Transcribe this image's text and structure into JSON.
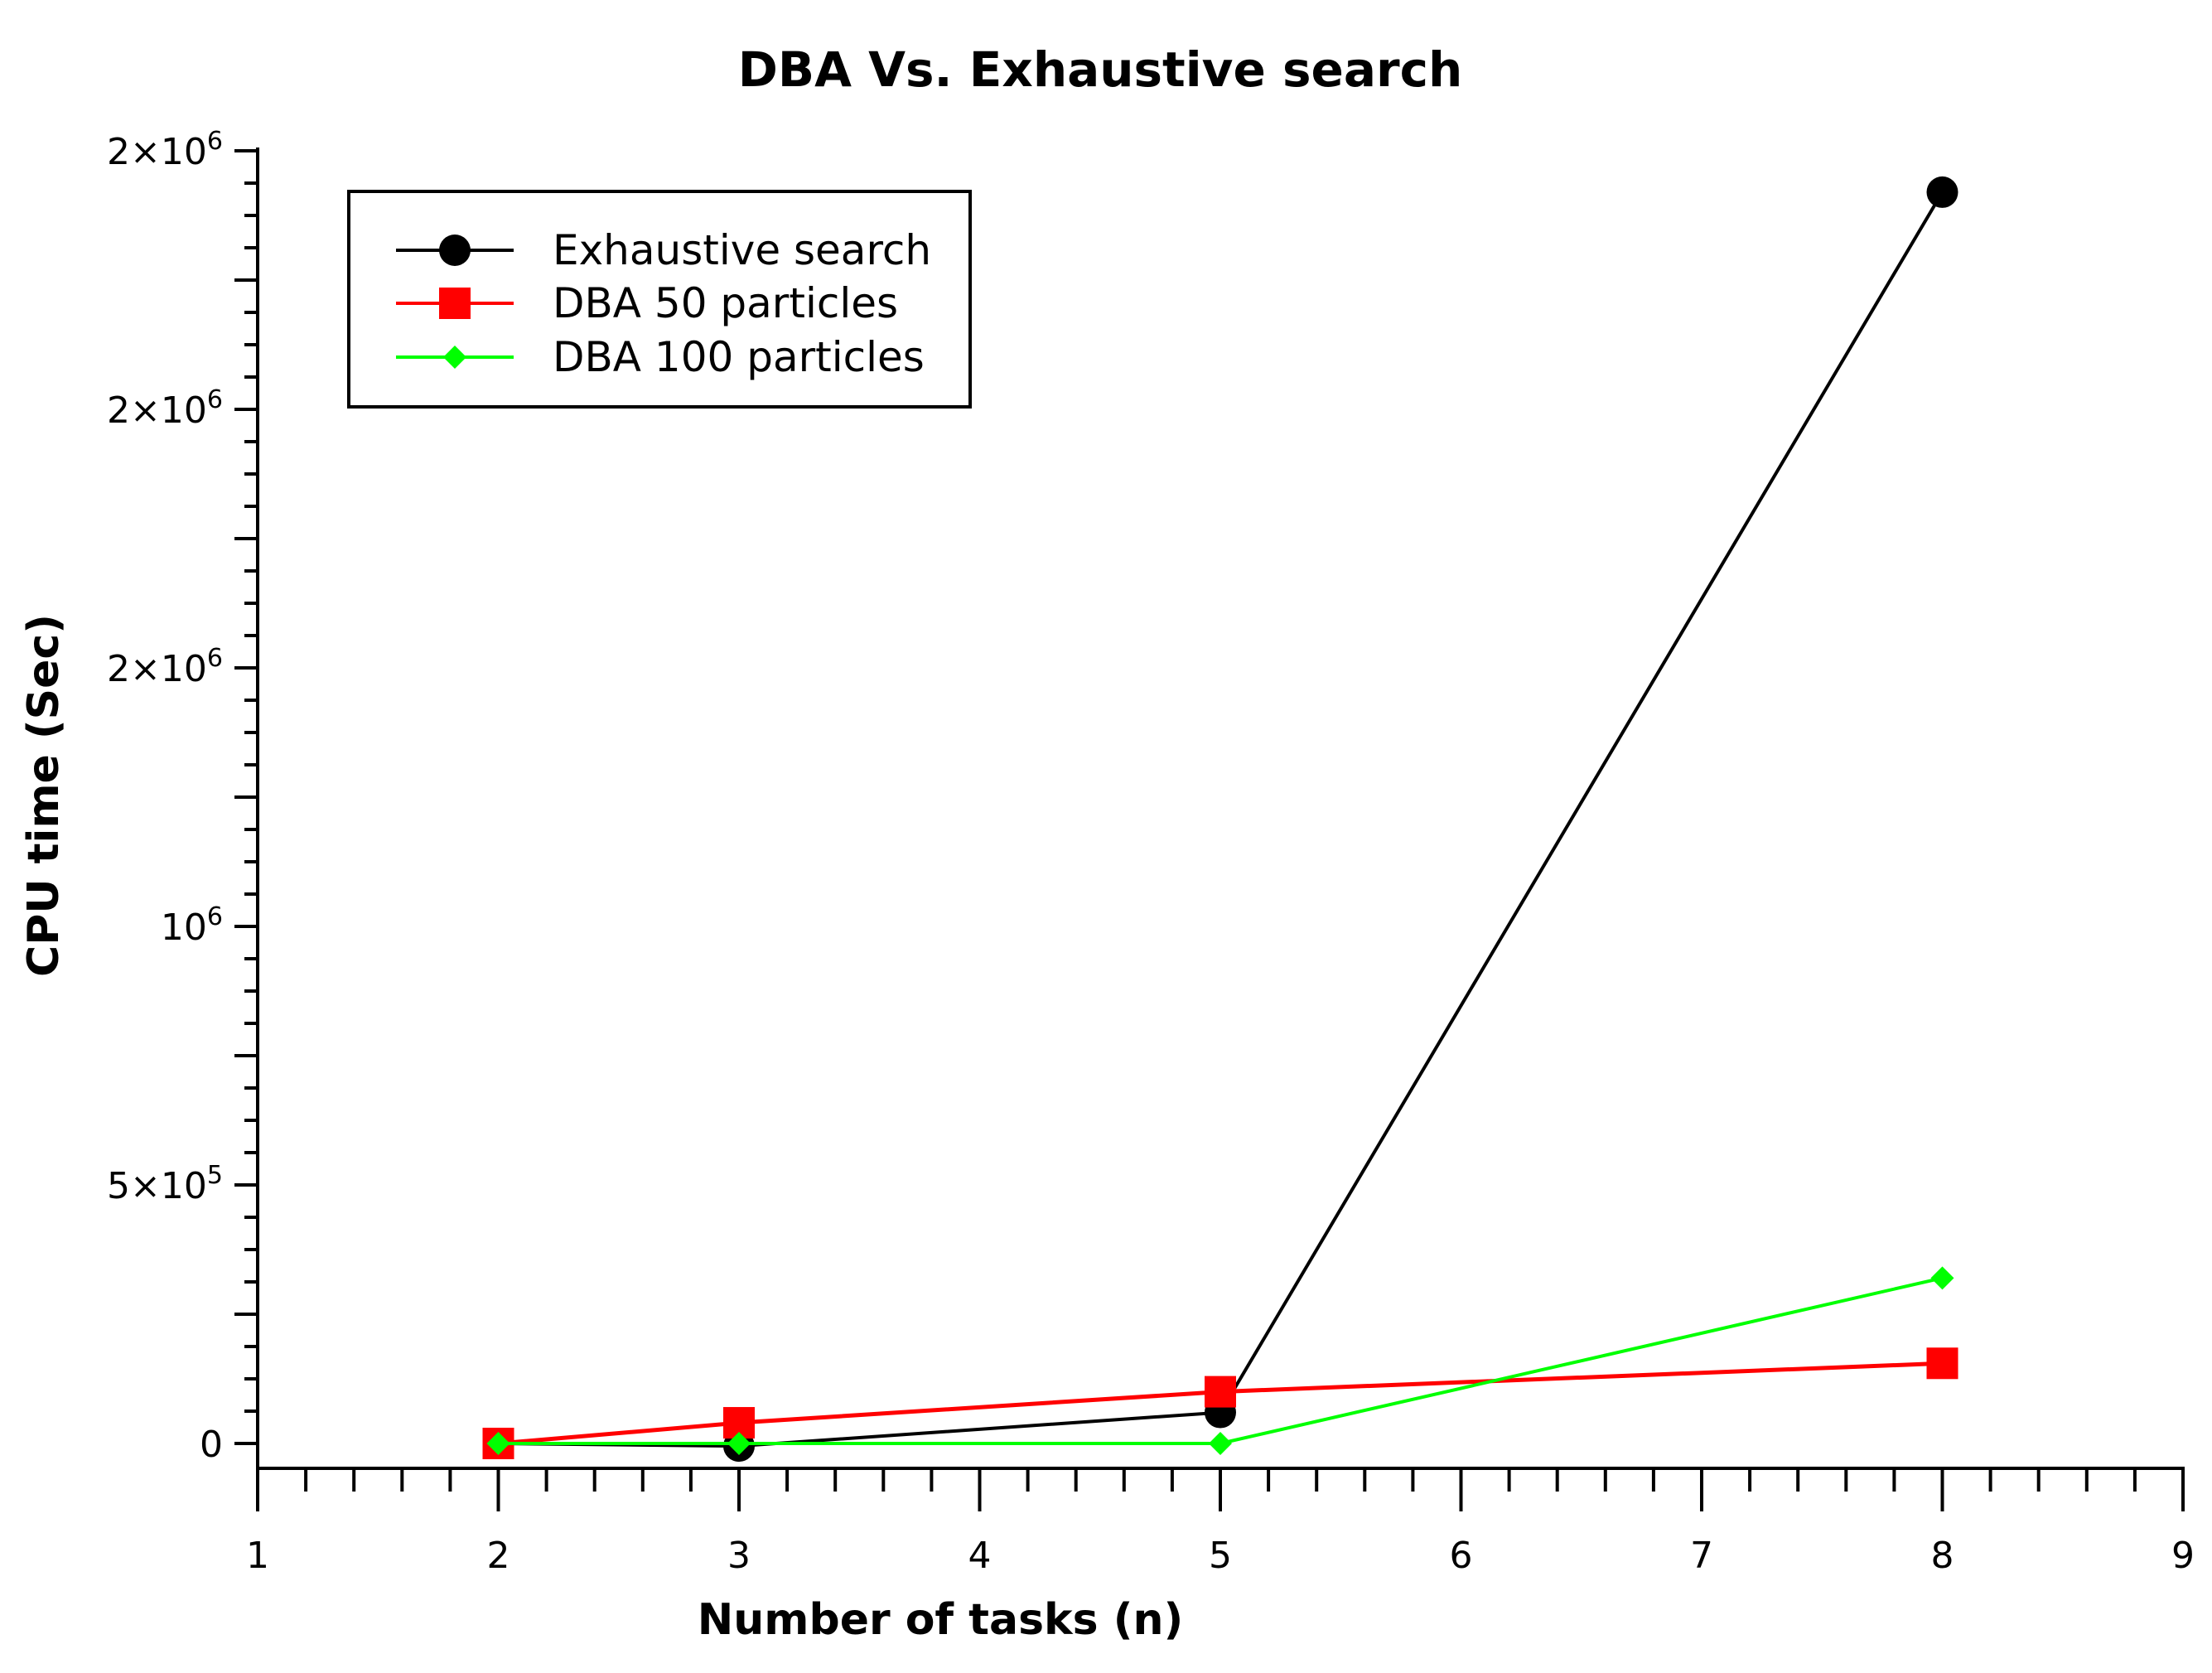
{
  "chart_data": {
    "type": "line",
    "title": "DBA Vs. Exhaustive search",
    "xlabel": "Number of tasks (n)",
    "ylabel": "CPU time (Sec)",
    "xlim": [
      1,
      9
    ],
    "ylim": [
      -50000,
      2500000
    ],
    "x_ticks": [
      "1",
      "2",
      "3",
      "4",
      "5",
      "6",
      "7",
      "8",
      "9"
    ],
    "y_ticks": [
      {
        "value": 0,
        "base": "0",
        "exp": ""
      },
      {
        "value": 500000,
        "base": "5×10",
        "exp": "5"
      },
      {
        "value": 1000000,
        "base": "10",
        "exp": "6"
      },
      {
        "value": 1500000,
        "base": "2×10",
        "exp": "6"
      },
      {
        "value": 2000000,
        "base": "2×10",
        "exp": "6"
      },
      {
        "value": 2500000,
        "base": "2×10",
        "exp": "6"
      }
    ],
    "x": [
      2,
      3,
      5,
      8
    ],
    "series": [
      {
        "name": "Exhaustive search",
        "color": "#000000",
        "marker": "circle",
        "values": [
          0,
          -5000,
          60000,
          2420000
        ]
      },
      {
        "name": "DBA 50 particles",
        "color": "#ff0000",
        "marker": "square",
        "values": [
          0,
          40000,
          100000,
          155000
        ]
      },
      {
        "name": "DBA  100 particles",
        "color": "#00ff00",
        "marker": "diamond",
        "values": [
          0,
          0,
          0,
          320000
        ]
      }
    ],
    "legend_position": "top-left",
    "grid": false
  }
}
